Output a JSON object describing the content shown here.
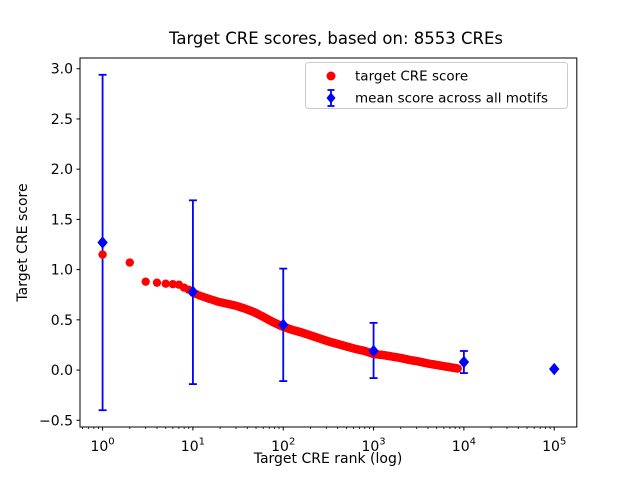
{
  "figure": {
    "background": "#ffffff"
  },
  "chart_data": {
    "type": "scatter",
    "title": "Target CRE scores, based on: 8553 CREs",
    "xlabel": "Target CRE rank (log)",
    "ylabel": "Target CRE score",
    "x_scale": "log",
    "xlim": [
      0.56,
      177828
    ],
    "ylim": [
      -0.57,
      3.11
    ],
    "grid": false,
    "x_tick_base": "10",
    "x_tick_exponents": [
      0,
      1,
      2,
      3,
      4,
      5
    ],
    "y_tick_values": [
      -0.5,
      0.0,
      0.5,
      1.0,
      1.5,
      2.0,
      2.5,
      3.0
    ],
    "y_tick_labels": [
      "−0.5",
      "0.0",
      "0.5",
      "1.0",
      "1.5",
      "2.0",
      "2.5",
      "3.0"
    ],
    "colors": {
      "target": "#ff0000",
      "mean": "#0000ff",
      "legend_border": "#cccccc"
    },
    "legend": {
      "position": "upper right",
      "entries": [
        {
          "label": "target CRE score",
          "color": "#ff0000",
          "marker": "circle"
        },
        {
          "label": "mean score across all motifs",
          "color": "#0000ff",
          "marker": "diamond-errorbar"
        }
      ]
    },
    "series": [
      {
        "name": "target CRE score",
        "marker": "circle",
        "color": "#ff0000",
        "n_points": 8553,
        "note": "one point per rank 1..8553; anchor samples of the curve (rank, score)",
        "points_rank_score": [
          [
            1,
            1.15
          ],
          [
            2,
            1.07
          ],
          [
            3,
            0.88
          ],
          [
            4,
            0.87
          ],
          [
            5,
            0.86
          ],
          [
            6,
            0.855
          ],
          [
            7,
            0.85
          ],
          [
            8,
            0.82
          ],
          [
            9,
            0.8
          ],
          [
            10,
            0.77
          ],
          [
            12,
            0.74
          ],
          [
            15,
            0.71
          ],
          [
            19,
            0.68
          ],
          [
            24,
            0.66
          ],
          [
            30,
            0.64
          ],
          [
            38,
            0.61
          ],
          [
            48,
            0.575
          ],
          [
            60,
            0.53
          ],
          [
            76,
            0.48
          ],
          [
            100,
            0.43
          ],
          [
            126,
            0.4
          ],
          [
            158,
            0.375
          ],
          [
            200,
            0.345
          ],
          [
            251,
            0.315
          ],
          [
            316,
            0.285
          ],
          [
            398,
            0.26
          ],
          [
            501,
            0.235
          ],
          [
            631,
            0.21
          ],
          [
            794,
            0.19
          ],
          [
            1000,
            0.16
          ],
          [
            1259,
            0.15
          ],
          [
            1585,
            0.135
          ],
          [
            1995,
            0.12
          ],
          [
            2512,
            0.1
          ],
          [
            3162,
            0.085
          ],
          [
            3981,
            0.065
          ],
          [
            5012,
            0.05
          ],
          [
            6310,
            0.035
          ],
          [
            7943,
            0.02
          ],
          [
            8553,
            0.015
          ]
        ]
      },
      {
        "name": "mean score across all motifs",
        "marker": "diamond",
        "color": "#0000ff",
        "points": [
          {
            "rank": 1,
            "mean": 1.27,
            "lo": -0.4,
            "hi": 2.94
          },
          {
            "rank": 10,
            "mean": 0.78,
            "lo": -0.14,
            "hi": 1.69
          },
          {
            "rank": 100,
            "mean": 0.45,
            "lo": -0.11,
            "hi": 1.01
          },
          {
            "rank": 1000,
            "mean": 0.19,
            "lo": -0.08,
            "hi": 0.47
          },
          {
            "rank": 10000,
            "mean": 0.08,
            "lo": -0.03,
            "hi": 0.19
          },
          {
            "rank": 100000,
            "mean": 0.01,
            "lo": 0.01,
            "hi": 0.01
          }
        ]
      }
    ]
  }
}
